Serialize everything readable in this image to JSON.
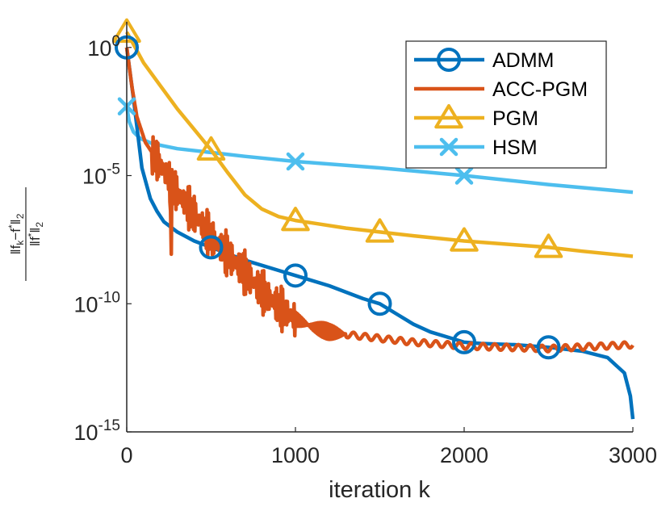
{
  "chart_data": {
    "type": "line",
    "y_scale": "log10",
    "xlabel": "iteration k",
    "ylabel": "||f_k − f*||_2 / ||f*||_2",
    "ylabel_parts": {
      "num": "‖f",
      "num_sub": "k",
      "num_mid": "−f",
      "num_sup": "*",
      "num_end": "‖",
      "num_end_sub": "2",
      "den": "‖f",
      "den_sup": "*",
      "den_end": "‖",
      "den_end_sub": "2"
    },
    "xlim": [
      0,
      3000
    ],
    "ylim_exponent": [
      -15,
      1
    ],
    "x_ticks": [
      {
        "value": 0,
        "label": "0"
      },
      {
        "value": 1000,
        "label": "1000"
      },
      {
        "value": 2000,
        "label": "2000"
      },
      {
        "value": 3000,
        "label": "3000"
      }
    ],
    "y_ticks": [
      {
        "exp": 0,
        "base": "10",
        "sup": "0"
      },
      {
        "exp": -5,
        "base": "10",
        "sup": "-5"
      },
      {
        "exp": -10,
        "base": "10",
        "sup": "-10"
      },
      {
        "exp": -15,
        "base": "10",
        "sup": "-15"
      }
    ],
    "legend_position": "top-right",
    "series": [
      {
        "name": "ADMM",
        "color": "#0072BD",
        "marker": "circle",
        "marker_x": [
          0,
          500,
          1000,
          1500,
          2000,
          2500
        ],
        "points": [
          [
            0,
            0
          ],
          [
            40,
            -2
          ],
          [
            90,
            -4.7
          ],
          [
            140,
            -5.9
          ],
          [
            180,
            -6.4
          ],
          [
            220,
            -6.8
          ],
          [
            300,
            -7.2
          ],
          [
            400,
            -7.55
          ],
          [
            500,
            -7.8
          ],
          [
            700,
            -8.3
          ],
          [
            900,
            -8.7
          ],
          [
            1000,
            -8.9
          ],
          [
            1200,
            -9.3
          ],
          [
            1400,
            -9.8
          ],
          [
            1500,
            -10
          ],
          [
            1600,
            -10.4
          ],
          [
            1700,
            -10.8
          ],
          [
            1800,
            -11.1
          ],
          [
            1900,
            -11.3
          ],
          [
            2000,
            -11.5
          ],
          [
            2100,
            -11.55
          ],
          [
            2300,
            -11.6
          ],
          [
            2500,
            -11.7
          ],
          [
            2700,
            -11.85
          ],
          [
            2850,
            -12.1
          ],
          [
            2950,
            -12.7
          ],
          [
            2985,
            -13.6
          ],
          [
            3000,
            -14.5
          ]
        ]
      },
      {
        "name": "ACC-PGM",
        "color": "#D95319",
        "marker": "none",
        "points": [
          [
            0,
            0
          ],
          [
            30,
            -1.5
          ],
          [
            60,
            -2.7
          ],
          [
            110,
            -3.7
          ],
          [
            160,
            -4.2
          ],
          [
            220,
            -4.8
          ],
          [
            300,
            -5.7
          ],
          [
            400,
            -6.5
          ],
          [
            500,
            -7.4
          ],
          [
            600,
            -8.1
          ],
          [
            700,
            -8.8
          ],
          [
            800,
            -9.5
          ],
          [
            900,
            -10.1
          ],
          [
            1000,
            -10.6
          ],
          [
            1100,
            -10.9
          ],
          [
            1200,
            -11.1
          ],
          [
            1300,
            -11.2
          ],
          [
            1500,
            -11.35
          ],
          [
            1700,
            -11.5
          ],
          [
            2000,
            -11.65
          ],
          [
            2500,
            -11.75
          ],
          [
            3000,
            -11.6
          ]
        ]
      },
      {
        "name": "PGM",
        "color": "#EDB120",
        "marker": "triangle",
        "marker_x": [
          0,
          500,
          1000,
          1500,
          2000,
          2500
        ],
        "points": [
          [
            0,
            0.6
          ],
          [
            100,
            -0.6
          ],
          [
            200,
            -1.5
          ],
          [
            300,
            -2.4
          ],
          [
            400,
            -3.2
          ],
          [
            500,
            -4.0
          ],
          [
            600,
            -4.9
          ],
          [
            700,
            -5.75
          ],
          [
            800,
            -6.3
          ],
          [
            900,
            -6.6
          ],
          [
            1000,
            -6.75
          ],
          [
            1100,
            -6.85
          ],
          [
            1300,
            -7.05
          ],
          [
            1500,
            -7.2
          ],
          [
            1700,
            -7.35
          ],
          [
            2000,
            -7.55
          ],
          [
            2300,
            -7.7
          ],
          [
            2500,
            -7.8
          ],
          [
            2700,
            -7.95
          ],
          [
            3000,
            -8.15
          ]
        ]
      },
      {
        "name": "HSM",
        "color": "#4DBEEE",
        "marker": "x",
        "marker_x": [
          0,
          1000,
          2000
        ],
        "points": [
          [
            0,
            -2.3
          ],
          [
            15,
            -2.9
          ],
          [
            40,
            -3.3
          ],
          [
            80,
            -3.55
          ],
          [
            150,
            -3.75
          ],
          [
            300,
            -3.95
          ],
          [
            500,
            -4.1
          ],
          [
            700,
            -4.25
          ],
          [
            1000,
            -4.45
          ],
          [
            1500,
            -4.7
          ],
          [
            2000,
            -5.0
          ],
          [
            2500,
            -5.35
          ],
          [
            3000,
            -5.65
          ]
        ]
      }
    ]
  }
}
